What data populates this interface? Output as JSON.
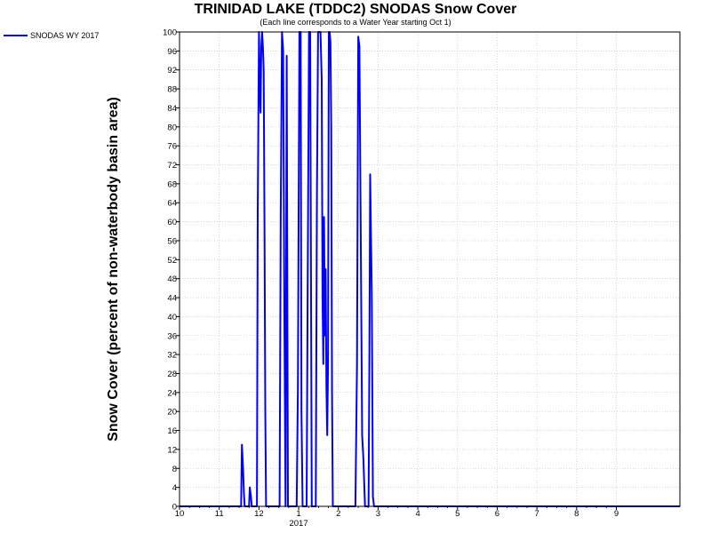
{
  "chart_data": {
    "type": "line",
    "title": "TRINIDAD LAKE (TDDC2) SNODAS Snow Cover",
    "subtitle": "(Each line corresponds to a Water Year starting Oct 1)",
    "ylabel": "Snow Cover (percent of non-waterbody basin area)",
    "xlabel": "",
    "year_label": "2017",
    "ylim": [
      0,
      100
    ],
    "xlim": [
      0,
      12.6
    ],
    "yticks": [
      0,
      4,
      8,
      12,
      16,
      20,
      24,
      28,
      32,
      36,
      40,
      44,
      48,
      52,
      56,
      60,
      64,
      68,
      72,
      76,
      80,
      84,
      88,
      92,
      96,
      100
    ],
    "xticks": [
      {
        "pos": 0,
        "label": "10"
      },
      {
        "pos": 1,
        "label": "11"
      },
      {
        "pos": 2,
        "label": "12"
      },
      {
        "pos": 3,
        "label": "1"
      },
      {
        "pos": 4,
        "label": "2"
      },
      {
        "pos": 5,
        "label": "3"
      },
      {
        "pos": 6,
        "label": "4"
      },
      {
        "pos": 7,
        "label": "5"
      },
      {
        "pos": 8,
        "label": "6"
      },
      {
        "pos": 9,
        "label": "7"
      },
      {
        "pos": 10,
        "label": "8"
      },
      {
        "pos": 11,
        "label": "9"
      }
    ],
    "grid": true,
    "legend_position": "top-left",
    "series": [
      {
        "name": "SNODAS WY 2017",
        "color": "#0000ff",
        "x": [
          0,
          1.55,
          1.57,
          1.6,
          1.62,
          1.64,
          1.67,
          1.75,
          1.77,
          1.8,
          1.82,
          1.95,
          1.97,
          2.0,
          2.02,
          2.04,
          2.06,
          2.08,
          2.1,
          2.12,
          2.14,
          2.16,
          2.18,
          2.2,
          2.22,
          2.24,
          2.27,
          2.3,
          2.52,
          2.55,
          2.58,
          2.61,
          2.64,
          2.67,
          2.7,
          2.73,
          2.76,
          2.79,
          2.82,
          2.85,
          2.9,
          2.95,
          2.98,
          3.02,
          3.05,
          3.07,
          3.1,
          3.13,
          3.2,
          3.23,
          3.26,
          3.29,
          3.33,
          3.4,
          3.43,
          3.46,
          3.49,
          3.52,
          3.55,
          3.58,
          3.6,
          3.62,
          3.64,
          3.66,
          3.68,
          3.7,
          3.72,
          3.74,
          3.76,
          3.78,
          3.8,
          3.82,
          3.84,
          3.86,
          3.88,
          3.9,
          3.93,
          3.96,
          4.0,
          4.03,
          4.06,
          4.1,
          4.13,
          4.16,
          4.2,
          4.25,
          4.3,
          4.35,
          4.4,
          4.43,
          4.47,
          4.5,
          4.53,
          4.56,
          4.6,
          4.63,
          4.67,
          4.7,
          4.72,
          4.74,
          4.76,
          4.78,
          4.8,
          4.84,
          4.87,
          4.9,
          4.95,
          5.7,
          12.6
        ],
        "values": [
          0,
          0,
          13,
          8,
          3,
          0,
          0,
          0,
          4,
          2,
          0,
          0,
          62,
          100,
          88,
          83,
          97,
          100,
          97,
          92,
          60,
          20,
          0,
          0,
          0,
          0,
          0,
          0,
          0,
          62,
          100,
          96,
          40,
          0,
          95,
          0,
          0,
          0,
          0,
          0,
          0,
          0,
          25,
          100,
          100,
          20,
          0,
          0,
          0,
          50,
          100,
          100,
          0,
          0,
          0,
          65,
          100,
          100,
          100,
          90,
          44,
          30,
          61,
          36,
          50,
          25,
          15,
          30,
          100,
          100,
          98,
          80,
          24,
          0,
          0,
          0,
          0,
          0,
          0,
          0,
          0,
          0,
          0,
          0,
          0,
          0,
          0,
          0,
          0,
          0,
          30,
          99,
          97,
          60,
          15,
          10,
          0,
          0,
          0,
          0,
          0,
          30,
          70,
          45,
          2,
          0,
          0,
          0,
          0
        ]
      }
    ]
  }
}
